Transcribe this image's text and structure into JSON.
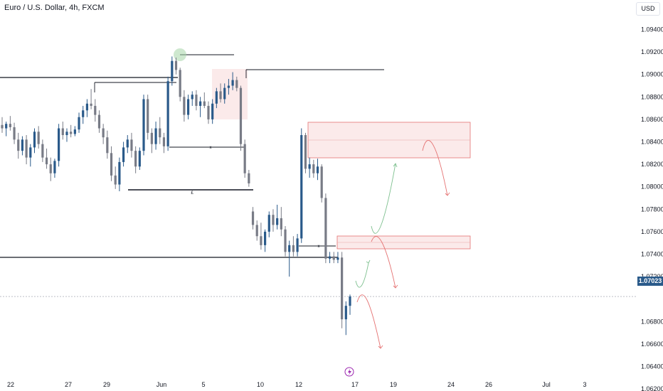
{
  "header": {
    "title": "Euro / U.S. Dollar, 4h, FXCM",
    "currency": "USD"
  },
  "last_price_label": "1.07023",
  "colors": {
    "up": "#2a5a8a",
    "down": "#787b86",
    "zone": "#f4c3c3",
    "bull_path": "#7ec08f",
    "bear_path": "#e57373",
    "circle": "#a5d6a7"
  },
  "icons": {
    "flash": "lightning-icon"
  },
  "chart_data": {
    "type": "candlestick",
    "title": "Euro / U.S. Dollar, 4h, FXCM",
    "x_ticks": [
      "22",
      "27",
      "29",
      "Jun",
      "5",
      "10",
      "12",
      "17",
      "19",
      "24",
      "26",
      "Jul",
      "3"
    ],
    "y_ticks": [
      "1.09400",
      "1.09200",
      "1.09000",
      "1.08800",
      "1.08600",
      "1.08400",
      "1.08200",
      "1.08000",
      "1.07800",
      "1.07600",
      "1.07400",
      "1.07200",
      "1.06800",
      "1.06600",
      "1.06400",
      "1.06200"
    ],
    "ylim": [
      1.0615,
      1.0955
    ],
    "last_price": 1.07023,
    "candles": [
      [
        1.0855,
        1.0862,
        1.0848,
        1.0852
      ],
      [
        1.0852,
        1.0858,
        1.0845,
        1.0856
      ],
      [
        1.0856,
        1.0863,
        1.085,
        1.0853
      ],
      [
        1.0853,
        1.0857,
        1.0838,
        1.0842
      ],
      [
        1.0842,
        1.0848,
        1.0825,
        1.0832
      ],
      [
        1.0832,
        1.0845,
        1.0828,
        1.0842
      ],
      [
        1.0842,
        1.0846,
        1.082,
        1.0826
      ],
      [
        1.0826,
        1.0838,
        1.0818,
        1.0835
      ],
      [
        1.0835,
        1.0852,
        1.083,
        1.0849
      ],
      [
        1.0849,
        1.0854,
        1.0834,
        1.0838
      ],
      [
        1.0838,
        1.0842,
        1.0822,
        1.0826
      ],
      [
        1.0826,
        1.0834,
        1.0816,
        1.082
      ],
      [
        1.082,
        1.0826,
        1.0805,
        1.0812
      ],
      [
        1.0812,
        1.0825,
        1.0808,
        1.0823
      ],
      [
        1.0823,
        1.0856,
        1.0818,
        1.0852
      ],
      [
        1.0852,
        1.0858,
        1.0842,
        1.0846
      ],
      [
        1.0846,
        1.0852,
        1.084,
        1.0849
      ],
      [
        1.0849,
        1.0855,
        1.0844,
        1.0847
      ],
      [
        1.0847,
        1.0854,
        1.0845,
        1.0851
      ],
      [
        1.0851,
        1.0866,
        1.0848,
        1.0862
      ],
      [
        1.0862,
        1.0872,
        1.0856,
        1.0868
      ],
      [
        1.0868,
        1.0878,
        1.0862,
        1.0874
      ],
      [
        1.0874,
        1.0887,
        1.0869,
        1.0872
      ],
      [
        1.0872,
        1.0878,
        1.0858,
        1.0864
      ],
      [
        1.0864,
        1.0868,
        1.0848,
        1.0852
      ],
      [
        1.0852,
        1.0856,
        1.0838,
        1.0844
      ],
      [
        1.0844,
        1.085,
        1.0825,
        1.083
      ],
      [
        1.083,
        1.0836,
        1.0805,
        1.081
      ],
      [
        1.081,
        1.0818,
        1.0798,
        1.0802
      ],
      [
        1.0802,
        1.0826,
        1.0796,
        1.0822
      ],
      [
        1.0822,
        1.084,
        1.0818,
        1.0835
      ],
      [
        1.0835,
        1.0846,
        1.083,
        1.0842
      ],
      [
        1.0842,
        1.0848,
        1.0826,
        1.0832
      ],
      [
        1.0832,
        1.0836,
        1.0812,
        1.0818
      ],
      [
        1.0818,
        1.0835,
        1.0815,
        1.0832
      ],
      [
        1.0832,
        1.0882,
        1.0828,
        1.0878
      ],
      [
        1.0878,
        1.0882,
        1.0842,
        1.0848
      ],
      [
        1.0848,
        1.0852,
        1.083,
        1.0838
      ],
      [
        1.0838,
        1.0858,
        1.0833,
        1.0852
      ],
      [
        1.0852,
        1.0862,
        1.0838,
        1.0844
      ],
      [
        1.0844,
        1.0848,
        1.083,
        1.0836
      ],
      [
        1.0836,
        1.0898,
        1.0832,
        1.0894
      ],
      [
        1.0894,
        1.0916,
        1.089,
        1.0912
      ],
      [
        1.0912,
        1.0915,
        1.09,
        1.0904
      ],
      [
        1.0904,
        1.0906,
        1.0876,
        1.088
      ],
      [
        1.088,
        1.0886,
        1.0858,
        1.0864
      ],
      [
        1.0864,
        1.0882,
        1.086,
        1.0878
      ],
      [
        1.0878,
        1.0885,
        1.0872,
        1.0882
      ],
      [
        1.0882,
        1.0886,
        1.0868,
        1.0872
      ],
      [
        1.0872,
        1.088,
        1.0862,
        1.0876
      ],
      [
        1.0876,
        1.0884,
        1.087,
        1.0872
      ],
      [
        1.0872,
        1.0876,
        1.0856,
        1.086
      ],
      [
        1.086,
        1.0878,
        1.0856,
        1.0874
      ],
      [
        1.0874,
        1.0888,
        1.087,
        1.0885
      ],
      [
        1.0885,
        1.0892,
        1.0875,
        1.0878
      ],
      [
        1.0878,
        1.0892,
        1.0874,
        1.0888
      ],
      [
        1.0888,
        1.0896,
        1.0882,
        1.089
      ],
      [
        1.089,
        1.0902,
        1.0886,
        1.0895
      ],
      [
        1.0895,
        1.0898,
        1.0885,
        1.0888
      ],
      [
        1.0888,
        1.089,
        1.0832,
        1.0838
      ],
      [
        1.0838,
        1.0842,
        1.0808,
        1.0812
      ],
      [
        1.0812,
        1.0815,
        1.08,
        1.0803
      ],
      [
        1.0778,
        1.0782,
        1.0762,
        1.0766
      ],
      [
        1.0766,
        1.077,
        1.0752,
        1.0756
      ],
      [
        1.0756,
        1.0768,
        1.0744,
        1.0748
      ],
      [
        1.0748,
        1.0762,
        1.0742,
        1.076
      ],
      [
        1.076,
        1.0778,
        1.0755,
        1.0775
      ],
      [
        1.0775,
        1.078,
        1.076,
        1.0766
      ],
      [
        1.0766,
        1.0784,
        1.0762,
        1.0772
      ],
      [
        1.0772,
        1.0782,
        1.0756,
        1.0762
      ],
      [
        1.0762,
        1.0765,
        1.0738,
        1.0742
      ],
      [
        1.0742,
        1.0752,
        1.072,
        1.0748
      ],
      [
        1.0748,
        1.0756,
        1.0738,
        1.0742
      ],
      [
        1.0742,
        1.0758,
        1.0738,
        1.0754
      ],
      [
        1.0754,
        1.0852,
        1.075,
        1.0846
      ],
      [
        1.0846,
        1.0848,
        1.0812,
        1.0816
      ],
      [
        1.0816,
        1.0826,
        1.0808,
        1.082
      ],
      [
        1.082,
        1.0824,
        1.0808,
        1.0812
      ],
      [
        1.0812,
        1.0825,
        1.0806,
        1.0818
      ],
      [
        1.0818,
        1.082,
        1.0786,
        1.079
      ],
      [
        1.079,
        1.0794,
        1.0732,
        1.0736
      ],
      [
        1.0736,
        1.0742,
        1.0732,
        1.0738
      ],
      [
        1.0738,
        1.0742,
        1.0732,
        1.0735
      ],
      [
        1.0735,
        1.0742,
        1.0732,
        1.0737
      ],
      [
        1.0737,
        1.0742,
        1.0674,
        1.0682
      ],
      [
        1.0682,
        1.0698,
        1.0668,
        1.0694
      ],
      [
        1.0694,
        1.0704,
        1.0686,
        1.07023
      ]
    ],
    "annotations": {
      "labels": [
        "x",
        "£",
        "x",
        "x"
      ]
    }
  }
}
